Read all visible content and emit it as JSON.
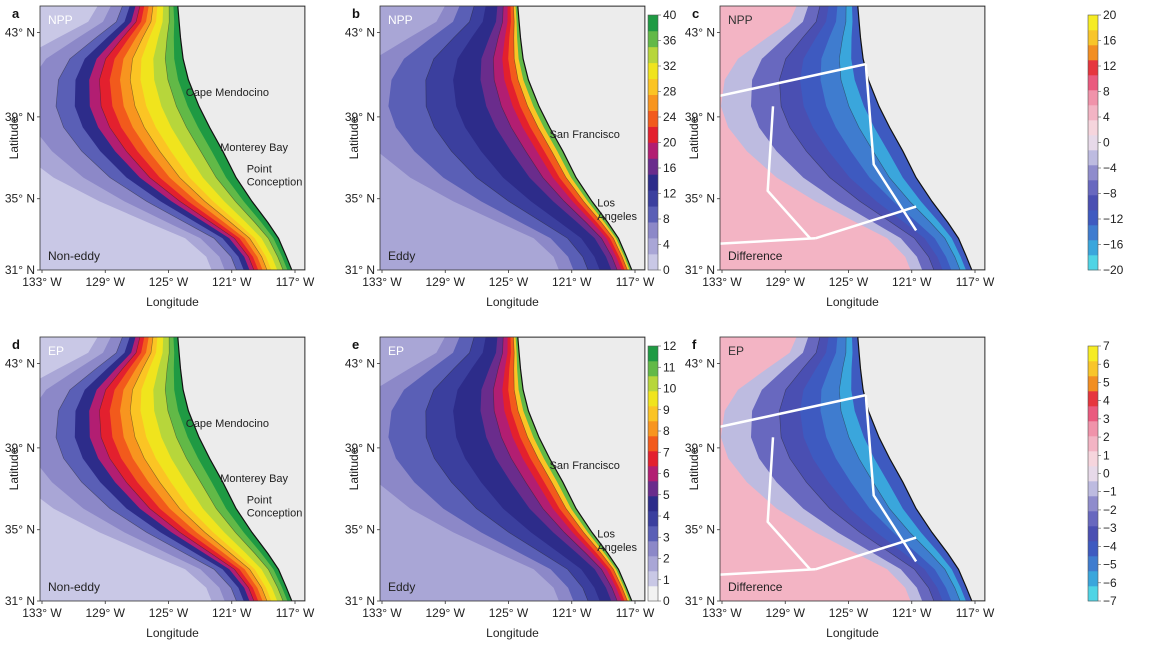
{
  "axes": {
    "ylabel": "Latitude",
    "xlabel": "Longitude",
    "lat_ticks": [
      "43° N",
      "39° N",
      "35° N",
      "31° N"
    ],
    "lon_ticks": [
      "133° W",
      "129° W",
      "125° W",
      "121° W",
      "117° W"
    ]
  },
  "panels": [
    {
      "letter": "a",
      "variable": "NPP",
      "condition": "Non-eddy",
      "places": [
        "Cape Mendocino",
        "Monterey Bay",
        "Point",
        "Conception"
      ]
    },
    {
      "letter": "b",
      "variable": "NPP",
      "condition": "Eddy",
      "places": [
        "San Francisco",
        "Los",
        "Angeles"
      ]
    },
    {
      "letter": "c",
      "variable": "NPP",
      "condition": "Difference",
      "places": []
    },
    {
      "letter": "d",
      "variable": "EP",
      "condition": "Non-eddy",
      "places": [
        "Cape Mendocino",
        "Monterey Bay",
        "Point",
        "Conception"
      ]
    },
    {
      "letter": "e",
      "variable": "EP",
      "condition": "Eddy",
      "places": [
        "San Francisco",
        "Los",
        "Angeles"
      ]
    },
    {
      "letter": "f",
      "variable": "EP",
      "condition": "Difference",
      "places": []
    }
  ],
  "colorbars": {
    "npp": {
      "ticks": [
        "40",
        "36",
        "32",
        "28",
        "24",
        "20",
        "16",
        "12",
        "8",
        "4",
        "0"
      ]
    },
    "npp_diff": {
      "ticks": [
        "20",
        "16",
        "12",
        "8",
        "4",
        "0",
        "−4",
        "−8",
        "−12",
        "−16",
        "−20"
      ]
    },
    "ep": {
      "ticks": [
        "12",
        "11",
        "10",
        "9",
        "8",
        "7",
        "6",
        "5",
        "4",
        "3",
        "2",
        "1",
        "0"
      ]
    },
    "ep_diff": {
      "ticks": [
        "7",
        "6",
        "5",
        "4",
        "3",
        "2",
        "1",
        "0",
        "−1",
        "−2",
        "−3",
        "−4",
        "−5",
        "−6",
        "−7"
      ]
    }
  },
  "colors": {
    "land": "#ececec",
    "ramp": [
      "#f2f2f2",
      "#c9c8e6",
      "#a9a6d6",
      "#8c88c8",
      "#5a5fb6",
      "#3b3f9e",
      "#2d2c8a",
      "#6a2c8c",
      "#b21e72",
      "#e3202e",
      "#f25a1c",
      "#f8951f",
      "#fbc424",
      "#f0e41d",
      "#b7d63b",
      "#62b947",
      "#1f9a43"
    ],
    "diff_ramp": [
      "#4fd4e5",
      "#3aa6dc",
      "#3f7ccf",
      "#3e5ac0",
      "#4a4fb2",
      "#6868bf",
      "#8f8ccc",
      "#bdbbe0",
      "#e7d9e9",
      "#f6d5dd",
      "#f3b4c4",
      "#f093aa",
      "#ea5a7e",
      "#e6363e",
      "#f28e22",
      "#f8c52a",
      "#f6ec23"
    ]
  }
}
